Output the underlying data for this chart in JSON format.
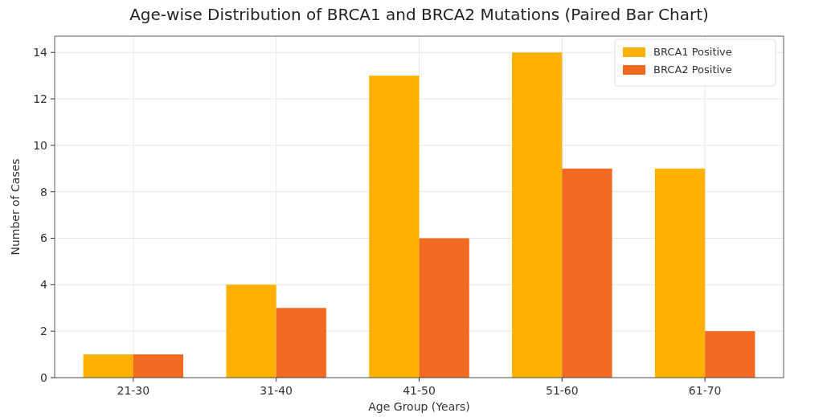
{
  "chart_data": {
    "type": "bar",
    "title": "Age-wise Distribution of BRCA1 and BRCA2 Mutations (Paired Bar Chart)",
    "xlabel": "Age Group (Years)",
    "ylabel": "Number of Cases",
    "categories": [
      "21-30",
      "31-40",
      "41-50",
      "51-60",
      "61-70"
    ],
    "series": [
      {
        "name": "BRCA1 Positive",
        "color": "#ffb000",
        "values": [
          1,
          4,
          13,
          14,
          9
        ]
      },
      {
        "name": "BRCA2 Positive",
        "color": "#f26a22",
        "values": [
          1,
          3,
          6,
          9,
          2
        ]
      }
    ],
    "ylim": [
      0,
      14.7
    ],
    "yticks": [
      0,
      2,
      4,
      6,
      8,
      10,
      12,
      14
    ],
    "grid": true,
    "legend": "top right"
  }
}
